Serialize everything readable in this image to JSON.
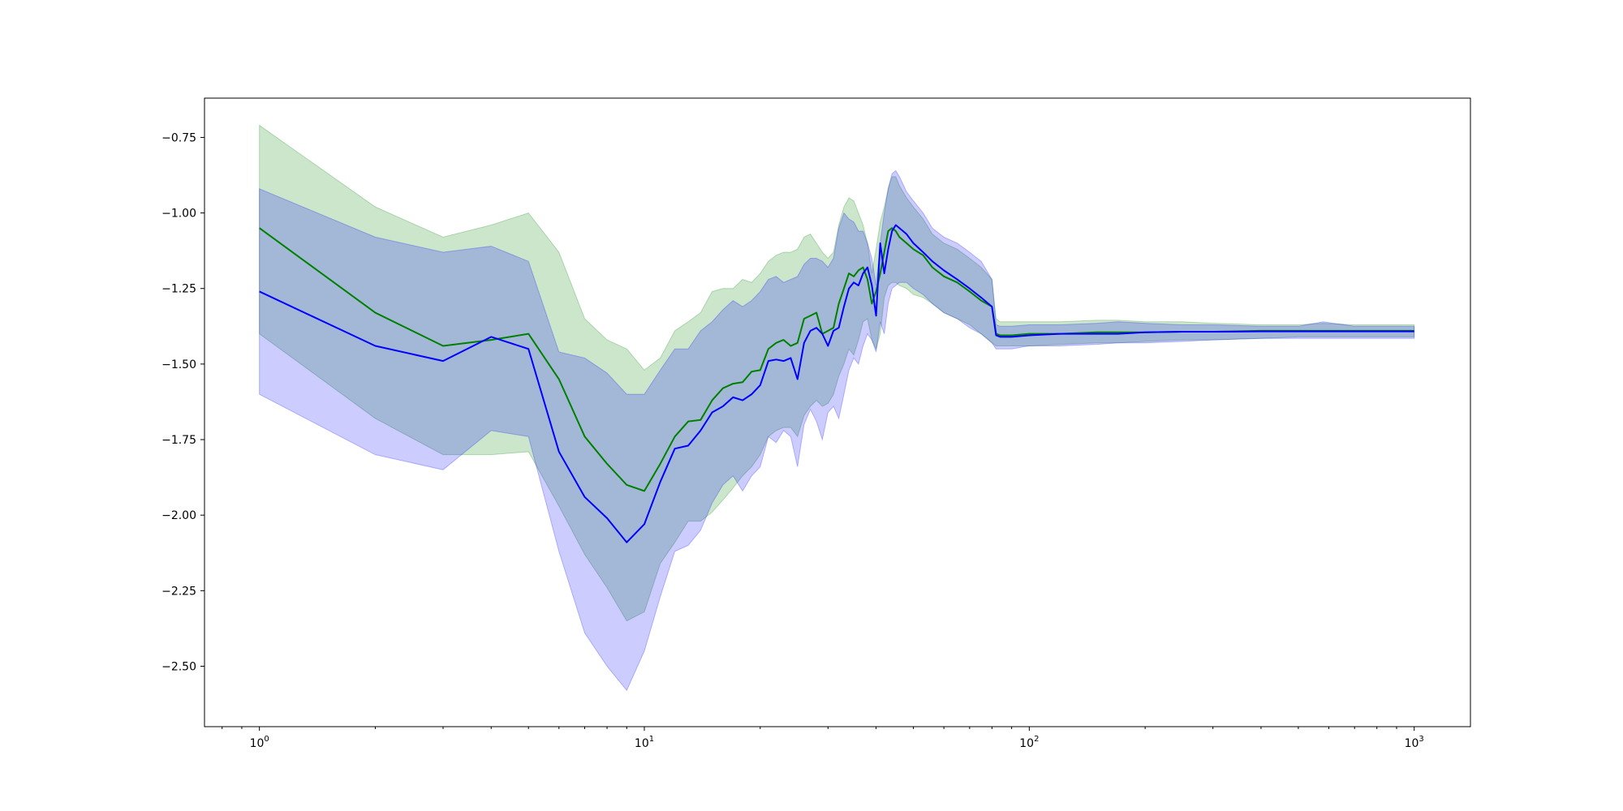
{
  "chart_data": {
    "type": "line",
    "title": "",
    "xlabel": "",
    "ylabel": "",
    "x_scale": "log",
    "xlim": [
      0.72,
      1400
    ],
    "ylim": [
      -2.7,
      -0.62
    ],
    "grid": false,
    "legend": "none",
    "x_ticks": [
      {
        "value": 1,
        "base": "10",
        "exp": "0"
      },
      {
        "value": 10,
        "base": "10",
        "exp": "1"
      },
      {
        "value": 100,
        "base": "10",
        "exp": "2"
      },
      {
        "value": 1000,
        "base": "10",
        "exp": "3"
      }
    ],
    "y_ticks": [
      {
        "value": -0.75,
        "label": "−0.75"
      },
      {
        "value": -1.0,
        "label": "−1.00"
      },
      {
        "value": -1.25,
        "label": "−1.25"
      },
      {
        "value": -1.5,
        "label": "−1.50"
      },
      {
        "value": -1.75,
        "label": "−1.75"
      },
      {
        "value": -2.0,
        "label": "−2.00"
      },
      {
        "value": -2.25,
        "label": "−2.25"
      },
      {
        "value": -2.5,
        "label": "−2.50"
      }
    ],
    "series": [
      {
        "color": "#008000",
        "band_color": "#008000",
        "band_opacity": 0.2,
        "x": [
          1,
          2,
          3,
          4,
          5,
          6,
          7,
          8,
          9,
          10,
          11,
          12,
          13,
          14,
          15,
          16,
          17,
          18,
          19,
          20,
          21,
          22,
          23,
          24,
          25,
          26,
          27,
          28,
          29,
          30,
          31,
          32,
          33,
          34,
          35,
          36,
          37,
          38,
          39,
          40,
          41,
          42,
          43,
          44,
          45,
          46,
          48,
          50,
          53,
          56,
          60,
          65,
          70,
          75,
          80,
          82,
          84,
          90,
          100,
          120,
          150,
          170,
          200,
          250,
          300,
          400,
          500,
          580,
          700,
          800,
          900,
          1000
        ],
        "y": [
          -1.05,
          -1.33,
          -1.44,
          -1.42,
          -1.4,
          -1.55,
          -1.74,
          -1.83,
          -1.9,
          -1.92,
          -1.83,
          -1.74,
          -1.69,
          -1.685,
          -1.62,
          -1.58,
          -1.565,
          -1.56,
          -1.525,
          -1.52,
          -1.45,
          -1.43,
          -1.42,
          -1.44,
          -1.43,
          -1.35,
          -1.34,
          -1.33,
          -1.4,
          -1.39,
          -1.38,
          -1.3,
          -1.25,
          -1.2,
          -1.21,
          -1.19,
          -1.18,
          -1.22,
          -1.3,
          -1.26,
          -1.2,
          -1.13,
          -1.06,
          -1.05,
          -1.06,
          -1.08,
          -1.1,
          -1.12,
          -1.14,
          -1.18,
          -1.21,
          -1.23,
          -1.26,
          -1.29,
          -1.31,
          -1.4,
          -1.405,
          -1.405,
          -1.4,
          -1.4,
          -1.395,
          -1.395,
          -1.395,
          -1.393,
          -1.393,
          -1.39,
          -1.39,
          -1.39,
          -1.39,
          -1.39,
          -1.39,
          -1.39
        ],
        "upper": [
          -0.71,
          -0.98,
          -1.08,
          -1.04,
          -1.0,
          -1.13,
          -1.35,
          -1.42,
          -1.45,
          -1.52,
          -1.48,
          -1.39,
          -1.36,
          -1.33,
          -1.26,
          -1.25,
          -1.25,
          -1.22,
          -1.23,
          -1.2,
          -1.16,
          -1.14,
          -1.13,
          -1.13,
          -1.12,
          -1.08,
          -1.07,
          -1.1,
          -1.13,
          -1.15,
          -1.13,
          -1.04,
          -0.98,
          -0.95,
          -0.96,
          -1.0,
          -1.04,
          -1.1,
          -1.2,
          -1.12,
          -1.03,
          -0.98,
          -0.92,
          -0.88,
          -0.88,
          -0.91,
          -0.95,
          -0.98,
          -1.02,
          -1.07,
          -1.1,
          -1.12,
          -1.15,
          -1.18,
          -1.22,
          -1.35,
          -1.36,
          -1.36,
          -1.36,
          -1.36,
          -1.355,
          -1.355,
          -1.36,
          -1.36,
          -1.365,
          -1.37,
          -1.37,
          -1.365,
          -1.37,
          -1.37,
          -1.37,
          -1.37
        ],
        "lower": [
          -1.4,
          -1.68,
          -1.8,
          -1.8,
          -1.79,
          -1.97,
          -2.13,
          -2.24,
          -2.35,
          -2.32,
          -2.16,
          -2.09,
          -2.02,
          -2.02,
          -1.99,
          -1.95,
          -1.91,
          -1.87,
          -1.84,
          -1.8,
          -1.74,
          -1.72,
          -1.71,
          -1.71,
          -1.74,
          -1.67,
          -1.64,
          -1.62,
          -1.64,
          -1.63,
          -1.6,
          -1.54,
          -1.5,
          -1.45,
          -1.47,
          -1.42,
          -1.36,
          -1.35,
          -1.42,
          -1.45,
          -1.4,
          -1.28,
          -1.24,
          -1.23,
          -1.23,
          -1.24,
          -1.25,
          -1.27,
          -1.28,
          -1.3,
          -1.33,
          -1.35,
          -1.37,
          -1.4,
          -1.43,
          -1.44,
          -1.44,
          -1.44,
          -1.44,
          -1.435,
          -1.43,
          -1.43,
          -1.425,
          -1.42,
          -1.42,
          -1.415,
          -1.41,
          -1.41,
          -1.41,
          -1.41,
          -1.41,
          -1.41
        ]
      },
      {
        "color": "#0000ff",
        "band_color": "#0000ff",
        "band_opacity": 0.2,
        "x": [
          1,
          2,
          3,
          4,
          5,
          6,
          7,
          8,
          9,
          10,
          11,
          12,
          13,
          14,
          15,
          16,
          17,
          18,
          19,
          20,
          21,
          22,
          23,
          24,
          25,
          26,
          27,
          28,
          29,
          30,
          31,
          32,
          33,
          34,
          35,
          36,
          37,
          38,
          39,
          40,
          41,
          42,
          43,
          44,
          45,
          46,
          48,
          50,
          53,
          56,
          60,
          65,
          70,
          75,
          80,
          82,
          84,
          90,
          100,
          120,
          150,
          170,
          200,
          250,
          300,
          400,
          500,
          580,
          700,
          800,
          900,
          1000
        ],
        "y": [
          -1.26,
          -1.44,
          -1.49,
          -1.41,
          -1.45,
          -1.79,
          -1.94,
          -2.01,
          -2.09,
          -2.03,
          -1.89,
          -1.78,
          -1.77,
          -1.72,
          -1.66,
          -1.64,
          -1.61,
          -1.62,
          -1.6,
          -1.57,
          -1.49,
          -1.485,
          -1.49,
          -1.48,
          -1.55,
          -1.43,
          -1.39,
          -1.38,
          -1.4,
          -1.44,
          -1.39,
          -1.38,
          -1.31,
          -1.25,
          -1.23,
          -1.24,
          -1.2,
          -1.18,
          -1.24,
          -1.34,
          -1.1,
          -1.2,
          -1.12,
          -1.06,
          -1.04,
          -1.05,
          -1.07,
          -1.1,
          -1.13,
          -1.16,
          -1.19,
          -1.22,
          -1.25,
          -1.28,
          -1.31,
          -1.405,
          -1.41,
          -1.41,
          -1.405,
          -1.4,
          -1.4,
          -1.4,
          -1.395,
          -1.393,
          -1.393,
          -1.392,
          -1.392,
          -1.392,
          -1.392,
          -1.392,
          -1.392,
          -1.392
        ],
        "upper": [
          -0.92,
          -1.08,
          -1.13,
          -1.11,
          -1.16,
          -1.46,
          -1.48,
          -1.53,
          -1.6,
          -1.6,
          -1.52,
          -1.45,
          -1.45,
          -1.39,
          -1.36,
          -1.32,
          -1.29,
          -1.31,
          -1.29,
          -1.26,
          -1.22,
          -1.21,
          -1.23,
          -1.22,
          -1.21,
          -1.17,
          -1.15,
          -1.15,
          -1.16,
          -1.18,
          -1.15,
          -1.05,
          -1.0,
          -1.02,
          -1.03,
          -1.06,
          -1.06,
          -1.1,
          -1.15,
          -1.24,
          -1.1,
          -1.0,
          -0.92,
          -0.87,
          -0.86,
          -0.88,
          -0.93,
          -0.96,
          -1.0,
          -1.05,
          -1.08,
          -1.1,
          -1.13,
          -1.16,
          -1.22,
          -1.37,
          -1.375,
          -1.375,
          -1.37,
          -1.37,
          -1.365,
          -1.36,
          -1.365,
          -1.37,
          -1.37,
          -1.375,
          -1.375,
          -1.36,
          -1.375,
          -1.375,
          -1.375,
          -1.375
        ],
        "lower": [
          -1.6,
          -1.8,
          -1.85,
          -1.72,
          -1.74,
          -2.12,
          -2.39,
          -2.5,
          -2.58,
          -2.45,
          -2.27,
          -2.12,
          -2.1,
          -2.05,
          -1.96,
          -1.9,
          -1.87,
          -1.92,
          -1.87,
          -1.84,
          -1.74,
          -1.76,
          -1.72,
          -1.74,
          -1.84,
          -1.7,
          -1.65,
          -1.69,
          -1.75,
          -1.66,
          -1.64,
          -1.68,
          -1.6,
          -1.52,
          -1.48,
          -1.5,
          -1.44,
          -1.4,
          -1.42,
          -1.46,
          -1.36,
          -1.4,
          -1.3,
          -1.25,
          -1.24,
          -1.23,
          -1.23,
          -1.25,
          -1.27,
          -1.3,
          -1.33,
          -1.35,
          -1.38,
          -1.4,
          -1.43,
          -1.45,
          -1.45,
          -1.45,
          -1.44,
          -1.44,
          -1.435,
          -1.43,
          -1.43,
          -1.425,
          -1.42,
          -1.415,
          -1.415,
          -1.415,
          -1.415,
          -1.415,
          -1.415,
          -1.415
        ]
      }
    ]
  }
}
